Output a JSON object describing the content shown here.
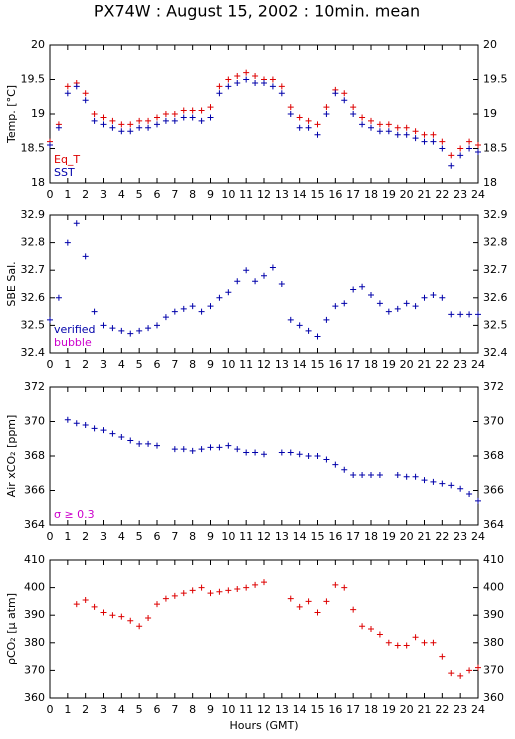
{
  "chart_data": [
    {
      "type": "scatter",
      "title": "PX74W : August 15, 2002 : 10min. mean",
      "ylabel": "Temp. [°C]",
      "x": [
        0,
        0.5,
        1,
        1.5,
        2,
        2.5,
        3,
        3.5,
        4,
        4.5,
        5,
        5.5,
        6,
        6.5,
        7,
        7.5,
        8,
        8.5,
        9,
        9.5,
        10,
        10.5,
        11,
        11.5,
        12,
        12.5,
        13,
        13.5,
        14,
        14.5,
        15,
        15.5,
        16,
        16.5,
        17,
        17.5,
        18,
        18.5,
        19,
        19.5,
        20,
        20.5,
        21,
        21.5,
        22,
        22.5,
        23,
        23.5,
        24
      ],
      "series": [
        {
          "name": "Eq_T",
          "color": "#dd0000",
          "values": [
            18.6,
            18.85,
            19.4,
            19.45,
            19.3,
            19.0,
            18.95,
            18.9,
            18.85,
            18.85,
            18.9,
            18.9,
            18.95,
            19.0,
            19.0,
            19.05,
            19.05,
            19.05,
            19.1,
            19.4,
            19.5,
            19.55,
            19.6,
            19.55,
            19.5,
            19.5,
            19.4,
            19.1,
            18.95,
            18.9,
            18.85,
            19.1,
            19.35,
            19.3,
            19.1,
            18.95,
            18.9,
            18.85,
            18.85,
            18.8,
            18.8,
            18.75,
            18.7,
            18.7,
            18.6,
            18.4,
            18.5,
            18.6,
            18.55
          ]
        },
        {
          "name": "SST",
          "color": "#0000aa",
          "values": [
            18.55,
            18.8,
            19.3,
            19.4,
            19.2,
            18.9,
            18.85,
            18.8,
            18.75,
            18.75,
            18.8,
            18.8,
            18.85,
            18.9,
            18.9,
            18.95,
            18.95,
            18.9,
            18.95,
            19.3,
            19.4,
            19.45,
            19.5,
            19.45,
            19.45,
            19.4,
            19.3,
            19.0,
            18.8,
            18.8,
            18.7,
            19.0,
            19.3,
            19.2,
            19.0,
            18.85,
            18.8,
            18.75,
            18.75,
            18.7,
            18.7,
            18.65,
            18.6,
            18.6,
            18.5,
            18.25,
            18.4,
            18.5,
            18.45
          ]
        }
      ],
      "xlim": [
        0,
        24
      ],
      "xticks": [
        0,
        1,
        2,
        3,
        4,
        5,
        6,
        7,
        8,
        9,
        10,
        11,
        12,
        13,
        14,
        15,
        16,
        17,
        18,
        19,
        20,
        21,
        22,
        23,
        24
      ],
      "ylim": [
        18,
        20
      ],
      "yticks": [
        18,
        18.5,
        19,
        19.5,
        20
      ]
    },
    {
      "type": "scatter",
      "ylabel": "SBE Sal.",
      "x": [
        0,
        0.5,
        1,
        1.5,
        2,
        2.5,
        3,
        3.5,
        4,
        4.5,
        5,
        5.5,
        6,
        6.5,
        7,
        7.5,
        8,
        8.5,
        9,
        9.5,
        10,
        10.5,
        11,
        11.5,
        12,
        12.5,
        13,
        13.5,
        14,
        14.5,
        15,
        15.5,
        16,
        16.5,
        17,
        17.5,
        18,
        18.5,
        19,
        19.5,
        20,
        20.5,
        21,
        21.5,
        22,
        22.5,
        23,
        23.5,
        24
      ],
      "series": [
        {
          "name": "verified",
          "color": "#0000aa",
          "values": [
            32.52,
            32.6,
            32.8,
            32.87,
            32.75,
            32.55,
            32.5,
            32.49,
            32.48,
            32.47,
            32.48,
            32.49,
            32.5,
            32.53,
            32.55,
            32.56,
            32.57,
            32.55,
            32.57,
            32.6,
            32.62,
            32.66,
            32.7,
            32.66,
            32.68,
            32.71,
            32.65,
            32.52,
            32.5,
            32.48,
            32.46,
            32.52,
            32.57,
            32.58,
            32.63,
            32.64,
            32.61,
            32.58,
            32.55,
            32.56,
            32.58,
            32.57,
            32.6,
            32.61,
            32.6,
            32.54,
            32.54,
            32.54,
            32.54
          ]
        }
      ],
      "annotations": [
        {
          "text": "bubble",
          "color": "#cc00cc"
        }
      ],
      "xlim": [
        0,
        24
      ],
      "xticks": [
        0,
        1,
        2,
        3,
        4,
        5,
        6,
        7,
        8,
        9,
        10,
        11,
        12,
        13,
        14,
        15,
        16,
        17,
        18,
        19,
        20,
        21,
        22,
        23,
        24
      ],
      "ylim": [
        32.4,
        32.9
      ],
      "yticks": [
        32.4,
        32.5,
        32.6,
        32.7,
        32.8,
        32.9
      ]
    },
    {
      "type": "scatter",
      "ylabel": "Air xCO₂ [ppm]",
      "x": [
        0,
        0.5,
        1,
        1.5,
        2,
        2.5,
        3,
        3.5,
        4,
        4.5,
        5,
        5.5,
        6,
        6.5,
        7,
        7.5,
        8,
        8.5,
        9,
        9.5,
        10,
        10.5,
        11,
        11.5,
        12,
        12.5,
        13,
        13.5,
        14,
        14.5,
        15,
        15.5,
        16,
        16.5,
        17,
        17.5,
        18,
        18.5,
        19,
        19.5,
        20,
        20.5,
        21,
        21.5,
        22,
        22.5,
        23,
        23.5,
        24
      ],
      "series": [
        {
          "name": "Air xCO₂",
          "color": "#0000aa",
          "values": [
            null,
            null,
            370.1,
            369.9,
            369.8,
            369.6,
            369.5,
            369.3,
            369.1,
            368.9,
            368.7,
            368.7,
            368.6,
            null,
            368.4,
            368.4,
            368.3,
            368.4,
            368.5,
            368.5,
            368.6,
            368.4,
            368.2,
            368.2,
            368.1,
            null,
            368.2,
            368.2,
            368.1,
            368.0,
            368.0,
            367.8,
            367.5,
            367.2,
            366.9,
            366.9,
            366.9,
            366.9,
            null,
            366.9,
            366.8,
            366.8,
            366.6,
            366.5,
            366.4,
            366.3,
            366.1,
            365.8,
            365.4
          ]
        }
      ],
      "annotations": [
        {
          "text": "σ ≥ 0.3",
          "color": "#cc00cc"
        }
      ],
      "xlim": [
        0,
        24
      ],
      "xticks": [
        0,
        1,
        2,
        3,
        4,
        5,
        6,
        7,
        8,
        9,
        10,
        11,
        12,
        13,
        14,
        15,
        16,
        17,
        18,
        19,
        20,
        21,
        22,
        23,
        24
      ],
      "ylim": [
        364,
        372
      ],
      "yticks": [
        364,
        366,
        368,
        370,
        372
      ]
    },
    {
      "type": "scatter",
      "ylabel": "ρCO₂ [μ atm]",
      "xlabel": "Hours (GMT)",
      "x": [
        0,
        0.5,
        1,
        1.5,
        2,
        2.5,
        3,
        3.5,
        4,
        4.5,
        5,
        5.5,
        6,
        6.5,
        7,
        7.5,
        8,
        8.5,
        9,
        9.5,
        10,
        10.5,
        11,
        11.5,
        12,
        12.5,
        13,
        13.5,
        14,
        14.5,
        15,
        15.5,
        16,
        16.5,
        17,
        17.5,
        18,
        18.5,
        19,
        19.5,
        20,
        20.5,
        21,
        21.5,
        22,
        22.5,
        23,
        23.5,
        24
      ],
      "series": [
        {
          "name": "pCO₂",
          "color": "#dd0000",
          "values": [
            null,
            null,
            null,
            394,
            395.5,
            393,
            391,
            390,
            389.5,
            388,
            386,
            389,
            394,
            396,
            397,
            398,
            399,
            400,
            398,
            398.5,
            399,
            399.5,
            400,
            401,
            402,
            null,
            null,
            396,
            393,
            395,
            391,
            395,
            401,
            400,
            392,
            386,
            385,
            383,
            380,
            379,
            379,
            382,
            380,
            380,
            375,
            369,
            368,
            370,
            371
          ]
        }
      ],
      "xlim": [
        0,
        24
      ],
      "xticks": [
        0,
        1,
        2,
        3,
        4,
        5,
        6,
        7,
        8,
        9,
        10,
        11,
        12,
        13,
        14,
        15,
        16,
        17,
        18,
        19,
        20,
        21,
        22,
        23,
        24
      ],
      "ylim": [
        360,
        410
      ],
      "yticks": [
        360,
        370,
        380,
        390,
        400,
        410
      ]
    }
  ]
}
